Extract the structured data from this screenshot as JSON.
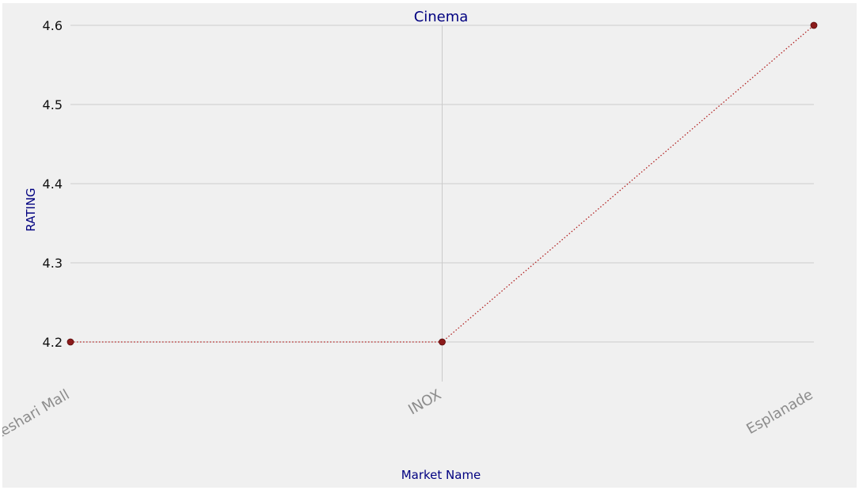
{
  "chart_data": {
    "type": "line",
    "title": "Cinema",
    "xlabel": "Market Name",
    "ylabel": "RATING",
    "categories": [
      "BMC Keshari Mall",
      "INOX",
      "Esplanade"
    ],
    "series": [
      {
        "values": [
          4.2,
          4.2,
          4.6
        ]
      }
    ],
    "y_ticks": [
      "4.2",
      "4.3",
      "4.4",
      "4.5",
      "4.6"
    ],
    "ylim": [
      4.15,
      4.6
    ],
    "grid": true,
    "colors": {
      "background": "#f0f0f0",
      "grid": "#cbcbcb",
      "line": "#b22222",
      "marker": "#8b1a1a",
      "title": "#000080",
      "tick_x": "#8c8c8c",
      "tick_y": "#111111"
    }
  }
}
